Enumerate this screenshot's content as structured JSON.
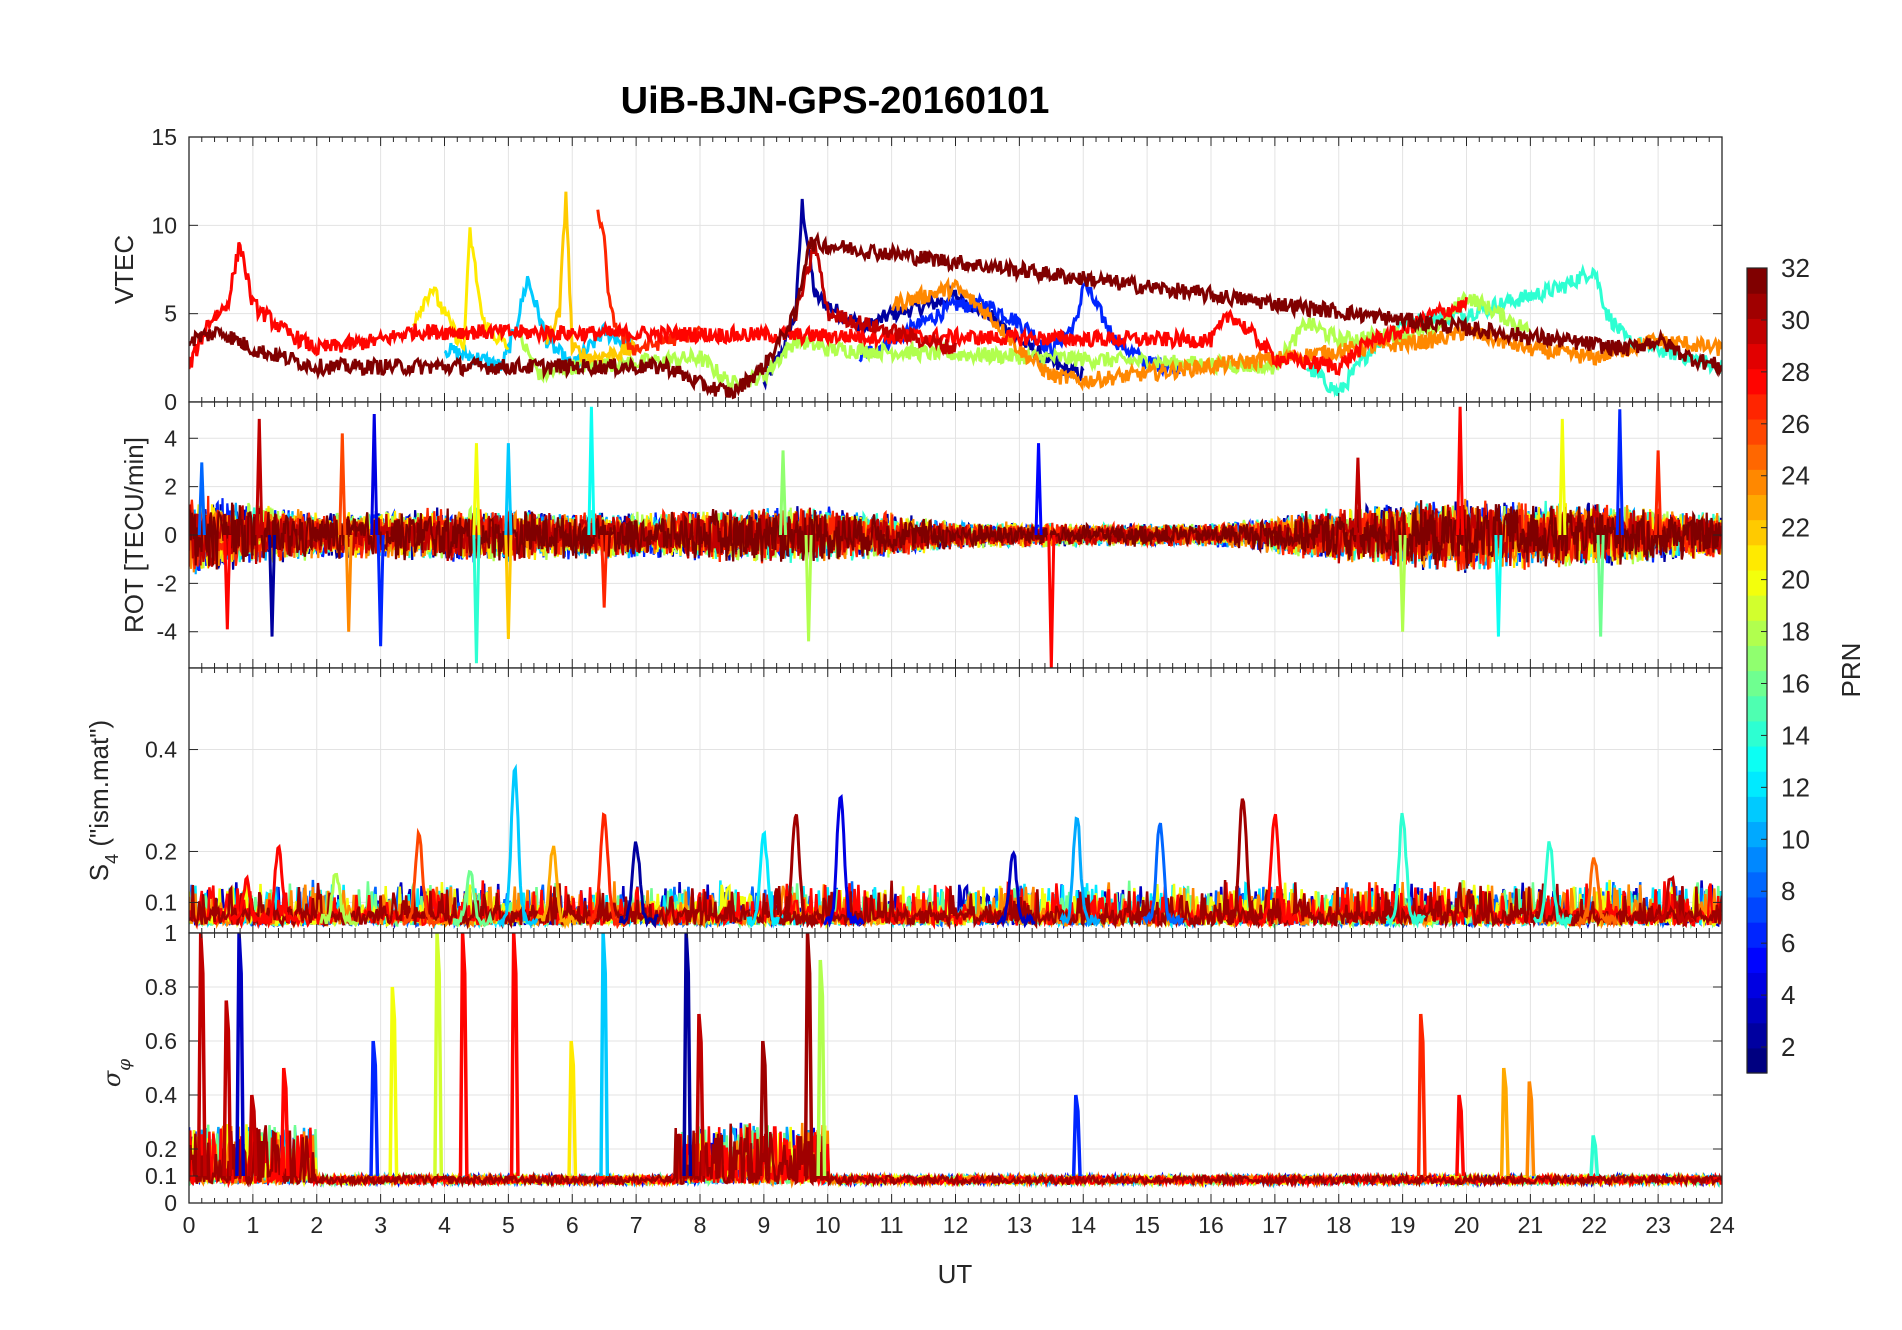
{
  "chart_data": [
    {
      "type": "line",
      "panel": "vtec",
      "title": "UiB-BJN-GPS-20160101",
      "ylabel": "VTEC",
      "ylim": [
        0,
        15
      ],
      "yticks": [
        0,
        5,
        10,
        15
      ],
      "xlim": [
        0,
        24
      ],
      "grid": true,
      "color_by": "PRN",
      "series": [
        {
          "prn": 2,
          "x": [
            9.0,
            9.3,
            9.5,
            9.6,
            9.8,
            10.2,
            10.6,
            11.0,
            11.6,
            12.0,
            12.5,
            13.0,
            13.6,
            14.0
          ],
          "y": [
            1.0,
            3.0,
            5.0,
            11.2,
            6.0,
            5.0,
            4.2,
            5.0,
            5.5,
            6.0,
            5.0,
            3.5,
            2.0,
            1.5
          ]
        },
        {
          "prn": 6,
          "x": [
            10.5,
            11.0,
            11.5,
            12.0,
            12.5,
            13.0,
            13.5,
            13.9,
            14.0,
            14.5,
            15.0,
            15.5
          ],
          "y": [
            2.5,
            3.5,
            4.5,
            5.5,
            5.5,
            4.5,
            3.0,
            4.5,
            6.8,
            3.5,
            2.2,
            2.0
          ]
        },
        {
          "prn": 11,
          "x": [
            4.0,
            4.5,
            4.9,
            5.1,
            5.3,
            5.6,
            6.0,
            6.5,
            7.0
          ],
          "y": [
            3.0,
            2.5,
            2.0,
            4.0,
            7.0,
            3.5,
            2.0,
            4.0,
            3.0
          ]
        },
        {
          "prn": 14,
          "x": [
            17.5,
            18.0,
            18.5,
            19.0,
            20.0,
            20.5,
            21.0,
            21.5,
            22.0,
            22.2,
            22.5,
            23.0,
            23.5,
            24.0
          ],
          "y": [
            2.0,
            0.5,
            3.0,
            4.5,
            5.0,
            5.5,
            6.0,
            6.5,
            7.5,
            5.0,
            3.5,
            3.0,
            2.5,
            2.0
          ]
        },
        {
          "prn": 18,
          "x": [
            5.2,
            5.5,
            6.0,
            8.0,
            8.5,
            9.0,
            9.5,
            10.0,
            17.0,
            17.5,
            18.0,
            19.5,
            20.0,
            20.5,
            21.0
          ],
          "y": [
            3.5,
            1.5,
            2.0,
            2.5,
            1.0,
            1.5,
            3.5,
            3.0,
            2.0,
            4.5,
            3.5,
            4.0,
            6.0,
            5.0,
            4.0
          ]
        },
        {
          "prn": 21,
          "x": [
            3.5,
            3.8,
            4.0,
            4.3,
            4.4,
            4.6,
            5.0
          ],
          "y": [
            4.5,
            6.5,
            5.0,
            3.0,
            9.6,
            4.5,
            3.0
          ]
        },
        {
          "prn": 22,
          "x": [
            5.6,
            5.8,
            5.9,
            6.0,
            6.3,
            7.0
          ],
          "y": [
            3.5,
            5.0,
            11.9,
            3.0,
            2.5,
            3.0
          ]
        },
        {
          "prn": 24,
          "x": [
            11.0,
            11.5,
            12.0,
            12.5,
            13.0,
            13.5,
            14.0,
            19.5,
            20.0,
            21.0,
            22.0,
            22.5,
            23.0,
            24.0
          ],
          "y": [
            5.5,
            6.0,
            6.5,
            5.0,
            3.0,
            1.5,
            1.2,
            3.5,
            4.0,
            3.0,
            2.5,
            3.0,
            3.5,
            3.0
          ]
        },
        {
          "prn": 27,
          "x": [
            6.4,
            6.5,
            6.6,
            6.8,
            7.0,
            7.5,
            8.0
          ],
          "y": [
            11.0,
            9.0,
            5.0,
            3.5,
            3.0,
            3.5,
            4.0
          ]
        },
        {
          "prn": 28,
          "x": [
            0.0,
            0.3,
            0.6,
            0.8,
            1.0,
            1.5,
            2.0,
            3.0,
            3.5,
            16.0,
            16.3,
            16.6,
            17.0,
            18.0,
            18.5,
            19.0,
            19.5,
            20.0
          ],
          "y": [
            2.0,
            4.5,
            5.5,
            9.0,
            5.5,
            4.0,
            3.0,
            3.5,
            4.0,
            3.5,
            5.0,
            4.0,
            2.5,
            2.0,
            3.5,
            4.0,
            5.0,
            5.5
          ]
        },
        {
          "prn": 30,
          "x": [
            9.5,
            9.7,
            9.8,
            10.0,
            10.5,
            11.0,
            11.5,
            12.0
          ],
          "y": [
            5.0,
            7.5,
            9.0,
            5.0,
            4.5,
            4.0,
            3.5,
            3.0
          ]
        },
        {
          "prn": 32,
          "x": [
            0.0,
            0.5,
            1.0,
            1.5,
            2.0,
            7.5,
            8.0,
            8.5,
            9.0,
            9.5,
            9.7,
            22.5,
            23.0,
            23.5,
            24.0
          ],
          "y": [
            3.5,
            4.0,
            3.0,
            2.5,
            2.0,
            2.0,
            1.0,
            0.5,
            2.0,
            5.0,
            9.0,
            3.0,
            3.5,
            2.5,
            2.0
          ]
        }
      ]
    },
    {
      "type": "line",
      "panel": "rot",
      "ylabel": "ROT [TECU/min]",
      "ylim": [
        -5.5,
        5.5
      ],
      "yticks": [
        -4,
        -2,
        0,
        2,
        4
      ],
      "xlim": [
        0,
        24
      ],
      "grid": true,
      "color_by": "PRN",
      "noise_envelope": {
        "x": [
          0,
          2,
          4,
          7,
          10,
          12,
          14,
          16,
          18,
          20,
          22,
          24
        ],
        "amplitude": [
          1.8,
          1.0,
          1.2,
          1.0,
          1.3,
          0.6,
          0.5,
          0.5,
          1.2,
          1.6,
          1.4,
          1.0
        ]
      },
      "spikes": [
        {
          "x": 0.2,
          "y": 3.0,
          "prn": 8
        },
        {
          "x": 0.6,
          "y": -3.9,
          "prn": 28
        },
        {
          "x": 1.1,
          "y": 4.8,
          "prn": 30
        },
        {
          "x": 1.3,
          "y": -4.2,
          "prn": 2
        },
        {
          "x": 2.4,
          "y": 4.2,
          "prn": 26
        },
        {
          "x": 2.5,
          "y": -4.0,
          "prn": 24
        },
        {
          "x": 2.9,
          "y": 5.0,
          "prn": 4
        },
        {
          "x": 3.0,
          "y": -4.6,
          "prn": 6
        },
        {
          "x": 4.5,
          "y": 3.8,
          "prn": 20
        },
        {
          "x": 4.5,
          "y": -5.3,
          "prn": 14
        },
        {
          "x": 5.0,
          "y": 3.8,
          "prn": 11
        },
        {
          "x": 5.0,
          "y": -4.3,
          "prn": 22
        },
        {
          "x": 6.3,
          "y": 5.3,
          "prn": 13
        },
        {
          "x": 6.5,
          "y": -3.0,
          "prn": 27
        },
        {
          "x": 9.3,
          "y": 3.5,
          "prn": 17
        },
        {
          "x": 9.7,
          "y": -4.4,
          "prn": 18
        },
        {
          "x": 13.3,
          "y": 3.8,
          "prn": 5
        },
        {
          "x": 13.5,
          "y": -5.5,
          "prn": 28
        },
        {
          "x": 18.3,
          "y": 3.2,
          "prn": 30
        },
        {
          "x": 19.0,
          "y": -4.0,
          "prn": 18
        },
        {
          "x": 19.9,
          "y": 5.3,
          "prn": 28
        },
        {
          "x": 20.5,
          "y": -4.2,
          "prn": 13
        },
        {
          "x": 21.5,
          "y": 4.8,
          "prn": 20
        },
        {
          "x": 22.1,
          "y": -4.2,
          "prn": 16
        },
        {
          "x": 22.4,
          "y": 5.2,
          "prn": 6
        },
        {
          "x": 23.0,
          "y": 3.5,
          "prn": 27
        }
      ]
    },
    {
      "type": "line",
      "panel": "s4",
      "ylabel": "S",
      "ylabel_subscript": "4",
      "ylabel_suffix": " (\"ism.mat\")",
      "ylim": [
        0.04,
        0.56
      ],
      "yticks": [
        0.1,
        0.2,
        0.4
      ],
      "xlim": [
        0,
        24
      ],
      "grid": true,
      "color_by": "PRN",
      "baseline": 0.055,
      "peaks": [
        {
          "x": 0.9,
          "y": 0.13,
          "prn": 28
        },
        {
          "x": 1.4,
          "y": 0.2,
          "prn": 28
        },
        {
          "x": 2.3,
          "y": 0.15,
          "prn": 18
        },
        {
          "x": 3.6,
          "y": 0.22,
          "prn": 26
        },
        {
          "x": 4.4,
          "y": 0.16,
          "prn": 16
        },
        {
          "x": 5.1,
          "y": 0.35,
          "prn": 11
        },
        {
          "x": 5.7,
          "y": 0.2,
          "prn": 23
        },
        {
          "x": 6.5,
          "y": 0.27,
          "prn": 27
        },
        {
          "x": 7.0,
          "y": 0.21,
          "prn": 2
        },
        {
          "x": 9.0,
          "y": 0.22,
          "prn": 12
        },
        {
          "x": 9.5,
          "y": 0.26,
          "prn": 31
        },
        {
          "x": 10.2,
          "y": 0.3,
          "prn": 4
        },
        {
          "x": 12.9,
          "y": 0.19,
          "prn": 3
        },
        {
          "x": 13.9,
          "y": 0.26,
          "prn": 10
        },
        {
          "x": 15.2,
          "y": 0.25,
          "prn": 8
        },
        {
          "x": 16.5,
          "y": 0.3,
          "prn": 31
        },
        {
          "x": 17.0,
          "y": 0.26,
          "prn": 28
        },
        {
          "x": 19.0,
          "y": 0.26,
          "prn": 14
        },
        {
          "x": 21.3,
          "y": 0.21,
          "prn": 14
        },
        {
          "x": 22.0,
          "y": 0.18,
          "prn": 25
        },
        {
          "x": 23.2,
          "y": 0.14,
          "prn": 30
        }
      ]
    },
    {
      "type": "line",
      "panel": "sigma_phi",
      "ylabel": "σ",
      "ylabel_subscript": "φ",
      "ylim": [
        0,
        1
      ],
      "yticks": [
        0,
        0.1,
        0.2,
        0.4,
        0.6,
        0.8,
        1
      ],
      "xlim": [
        0,
        24
      ],
      "xlabel": "UT",
      "xticks": [
        0,
        1,
        2,
        3,
        4,
        5,
        6,
        7,
        8,
        9,
        10,
        11,
        12,
        13,
        14,
        15,
        16,
        17,
        18,
        19,
        20,
        21,
        22,
        23,
        24
      ],
      "grid": true,
      "color_by": "PRN",
      "baseline": 0.08,
      "spikes": [
        {
          "x": 0.2,
          "y": 1.0,
          "prn": 30
        },
        {
          "x": 0.6,
          "y": 0.75,
          "prn": 30
        },
        {
          "x": 0.8,
          "y": 1.0,
          "prn": 3
        },
        {
          "x": 1.0,
          "y": 0.4,
          "prn": 30
        },
        {
          "x": 1.5,
          "y": 0.5,
          "prn": 28
        },
        {
          "x": 2.9,
          "y": 0.6,
          "prn": 6
        },
        {
          "x": 3.2,
          "y": 0.8,
          "prn": 20
        },
        {
          "x": 3.9,
          "y": 1.0,
          "prn": 19
        },
        {
          "x": 4.3,
          "y": 1.0,
          "prn": 28
        },
        {
          "x": 5.1,
          "y": 1.0,
          "prn": 28
        },
        {
          "x": 6.0,
          "y": 0.6,
          "prn": 21
        },
        {
          "x": 6.5,
          "y": 1.0,
          "prn": 11
        },
        {
          "x": 7.8,
          "y": 1.0,
          "prn": 2
        },
        {
          "x": 8.0,
          "y": 0.7,
          "prn": 30
        },
        {
          "x": 9.0,
          "y": 0.6,
          "prn": 31
        },
        {
          "x": 9.7,
          "y": 1.0,
          "prn": 31
        },
        {
          "x": 9.9,
          "y": 0.9,
          "prn": 18
        },
        {
          "x": 13.9,
          "y": 0.4,
          "prn": 6
        },
        {
          "x": 19.3,
          "y": 0.7,
          "prn": 27
        },
        {
          "x": 19.9,
          "y": 0.4,
          "prn": 28
        },
        {
          "x": 20.6,
          "y": 0.5,
          "prn": 23
        },
        {
          "x": 21.0,
          "y": 0.45,
          "prn": 24
        },
        {
          "x": 22.0,
          "y": 0.25,
          "prn": 14
        }
      ]
    }
  ],
  "colorbar": {
    "label": "PRN",
    "range": [
      1,
      32
    ],
    "ticks": [
      2,
      4,
      6,
      8,
      10,
      12,
      14,
      16,
      18,
      20,
      22,
      24,
      26,
      28,
      30,
      32
    ],
    "colormap": "jet",
    "steps": 32
  }
}
